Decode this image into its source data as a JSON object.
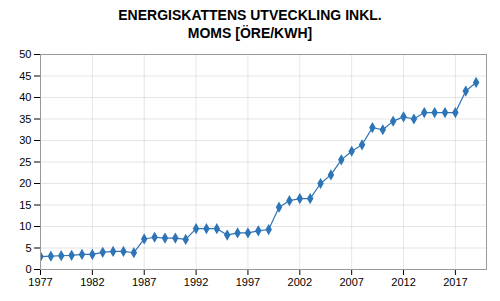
{
  "chart_data": {
    "type": "line",
    "title": "ENERGISKATTENS UTVECKLING INKL.\nMOMS [ÖRE/KWH]",
    "x": [
      1977,
      1978,
      1979,
      1980,
      1981,
      1982,
      1983,
      1984,
      1985,
      1986,
      1987,
      1988,
      1989,
      1990,
      1991,
      1992,
      1993,
      1994,
      1995,
      1996,
      1997,
      1998,
      1999,
      2000,
      2001,
      2002,
      2003,
      2004,
      2005,
      2006,
      2007,
      2008,
      2009,
      2010,
      2011,
      2012,
      2013,
      2014,
      2015,
      2016,
      2017,
      2018,
      2019
    ],
    "values": [
      3.0,
      3.1,
      3.2,
      3.3,
      3.5,
      3.5,
      4.0,
      4.2,
      4.2,
      3.9,
      7.1,
      7.5,
      7.3,
      7.3,
      7.0,
      9.5,
      9.5,
      9.5,
      8.0,
      8.5,
      8.5,
      9.0,
      9.3,
      14.5,
      16.0,
      16.5,
      16.5,
      20.0,
      22.0,
      25.5,
      27.5,
      29.0,
      33.0,
      32.5,
      34.5,
      35.5,
      35.0,
      36.5,
      36.5,
      36.5,
      36.5,
      41.5,
      43.5
    ],
    "color": "#2e75b6",
    "marker": "diamond",
    "xlim": [
      1977,
      2020
    ],
    "ylim": [
      0,
      50
    ],
    "xticks": [
      1977,
      1982,
      1987,
      1992,
      1997,
      2002,
      2007,
      2012,
      2017
    ],
    "yticks": [
      0,
      5,
      10,
      15,
      20,
      25,
      30,
      35,
      40,
      45,
      50
    ],
    "grid": true
  }
}
